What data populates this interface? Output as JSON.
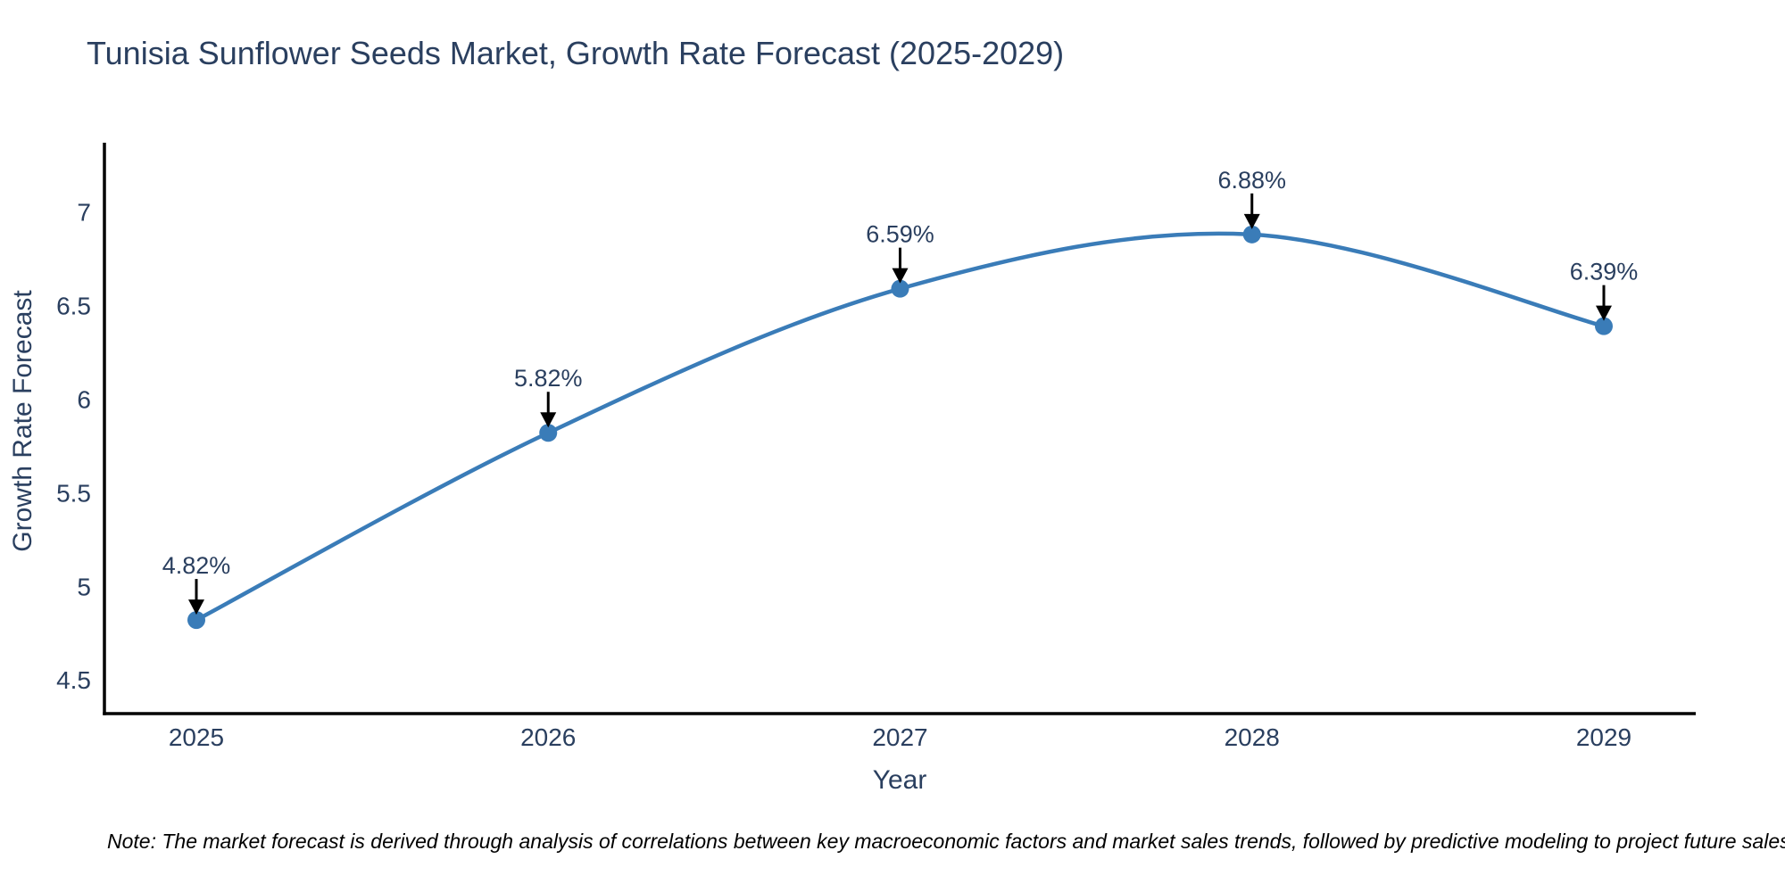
{
  "chart": {
    "title": "Tunisia Sunflower Seeds Market, Growth Rate Forecast (2025-2029)",
    "xlabel": "Year",
    "ylabel": "Growth Rate Forecast",
    "note": "Note: The market forecast is derived through analysis of correlations between key macroeconomic factors and market sales trends, followed by predictive modeling to project future sales"
  },
  "chart_data": {
    "type": "line",
    "line_shape": "spline",
    "title": "Tunisia Sunflower Seeds Market, Growth Rate Forecast (2025-2029)",
    "xlabel": "Year",
    "ylabel": "Growth Rate Forecast",
    "categories": [
      "2025",
      "2026",
      "2027",
      "2028",
      "2029"
    ],
    "values": [
      4.82,
      5.82,
      6.59,
      6.88,
      6.39
    ],
    "point_labels": [
      "4.82%",
      "5.82%",
      "6.59%",
      "6.88%",
      "6.39%"
    ],
    "yticks": [
      4.5,
      5,
      5.5,
      6,
      6.5,
      7
    ],
    "ylim": [
      4.32,
      7.37
    ],
    "grid": false,
    "legend": false,
    "colors": {
      "line": "#3a7cb8",
      "marker": "#3a7cb8",
      "axis": "#000000",
      "arrow": "#000000",
      "text": "#2a3f5f",
      "tick_text": "#2a3f5f"
    }
  }
}
